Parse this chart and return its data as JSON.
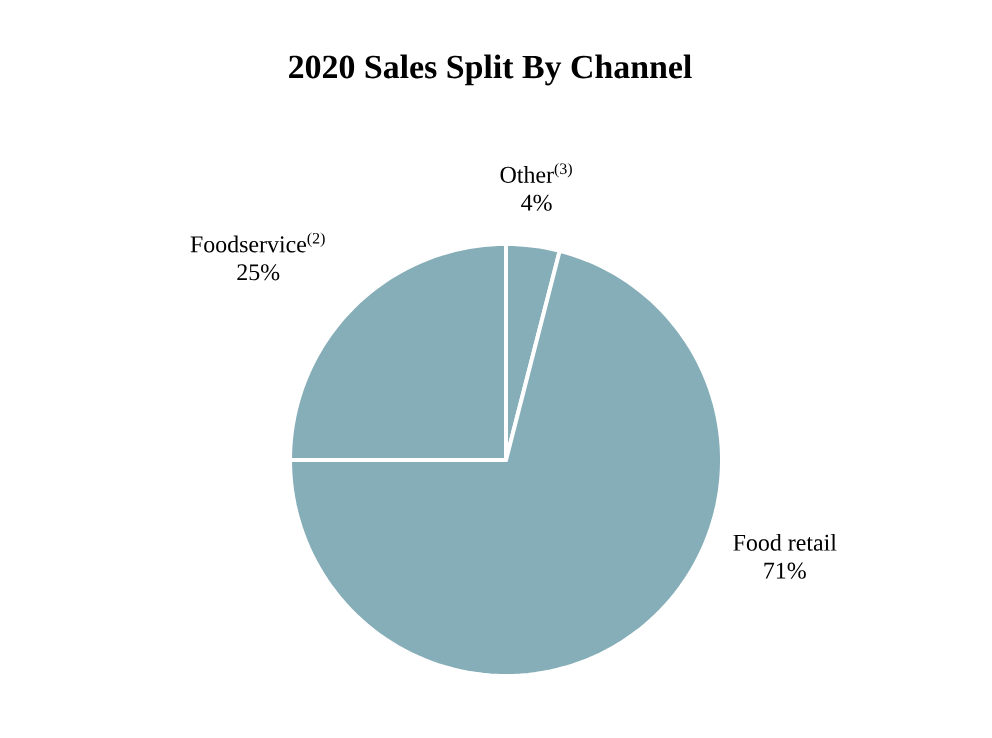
{
  "chart_data": {
    "type": "pie",
    "title": "2020 Sales Split By Channel",
    "categories": [
      "Other$^{(3)}$",
      "Food retail",
      "Foodservice$^{(2)}$"
    ],
    "values": [
      4,
      71,
      25
    ],
    "colors": [
      "#86aeb8",
      "#86aeb8",
      "#86aeb8"
    ],
    "value_labels": [
      "4%",
      "71%",
      "25%"
    ]
  }
}
